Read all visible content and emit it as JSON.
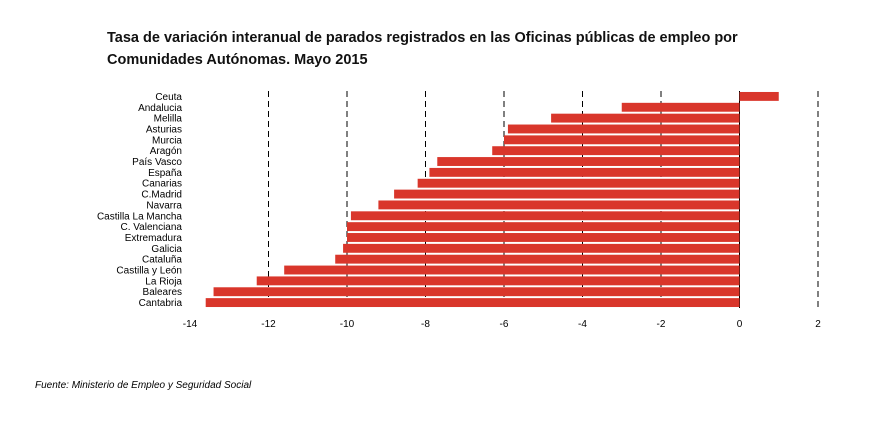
{
  "title_line1": "Tasa de variación interanual de parados registrados en las Oficinas públicas de empleo por",
  "title_line2": "Comunidades Autónomas.  Mayo 2015",
  "source": "Fuente: Ministerio de Empleo y Seguridad Social",
  "chart_data": {
    "type": "bar",
    "orientation": "horizontal",
    "categories": [
      "Ceuta",
      "Andalucia",
      "Melilla",
      "Asturias",
      "Murcia",
      "Aragón",
      "País Vasco",
      "España",
      "Canarias",
      "C.Madrid",
      "Navarra",
      "Castilla La Mancha",
      "C. Valenciana",
      "Extremadura",
      "Galicia",
      "Cataluña",
      "Castilla y León",
      "La Rioja",
      "Baleares",
      "Cantabria"
    ],
    "values": [
      1.0,
      -3.0,
      -4.8,
      -5.9,
      -6.0,
      -6.3,
      -7.7,
      -7.9,
      -8.2,
      -8.8,
      -9.2,
      -9.9,
      -10.0,
      -10.0,
      -10.1,
      -10.3,
      -11.6,
      -12.3,
      -13.4,
      -13.6
    ],
    "xlim": [
      -14,
      2
    ],
    "xticks": [
      "-14",
      "-12",
      "-10",
      "-8",
      "-6",
      "-4",
      "-2",
      "0",
      "2"
    ],
    "gridlines": [
      -12,
      -10,
      -8,
      -6,
      -4,
      -2,
      2
    ],
    "grid_style": "dashed-vertical",
    "bar_color": "#d9362b",
    "xlabel": "",
    "ylabel": ""
  }
}
